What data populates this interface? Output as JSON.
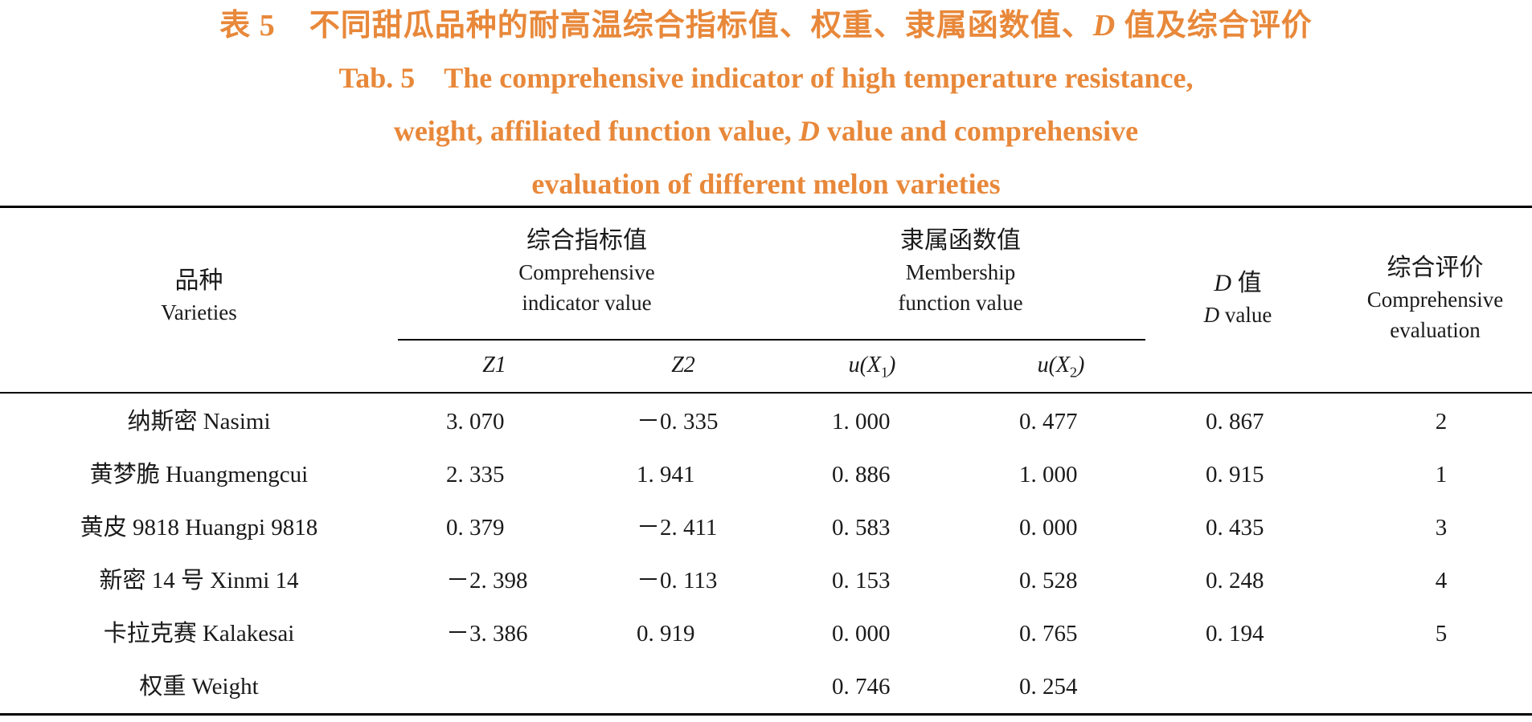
{
  "caption": {
    "cn_prefix": "表 5",
    "cn_a": "不同甜瓜品种的耐高温综合指标值、权重、隶属函数值、",
    "cn_d": "D",
    "cn_b": " 值及综合评价",
    "en_line1": "Tab. 5　The comprehensive indicator of high temperature resistance,",
    "en_line2_a": "weight, affiliated function value, ",
    "en_line2_d": "D",
    "en_line2_b": " value and comprehensive",
    "en_line3": "evaluation of different melon varieties"
  },
  "header": {
    "varieties_cn": "品种",
    "varieties_en": "Varieties",
    "ci_cn": "综合指标值",
    "ci_en1": "Comprehensive",
    "ci_en2": "indicator value",
    "mf_cn": "隶属函数值",
    "mf_en1": "Membership",
    "mf_en2": "function value",
    "d_cn_d": "D",
    "d_cn_rest": " 值",
    "d_en_d": "D",
    "d_en_rest": " value",
    "eval_cn": "综合评价",
    "eval_en1": "Comprehensive",
    "eval_en2": "evaluation",
    "z1": "Z1",
    "z2": "Z2",
    "u1_base": "u(X",
    "u1_sub": "1",
    "u1_end": ")",
    "u2_base": "u(X",
    "u2_sub": "2",
    "u2_end": ")"
  },
  "rows": [
    {
      "variety": "纳斯密 Nasimi",
      "z1": "3. 070",
      "z2": "－0. 335",
      "u1": "1. 000",
      "u2": "0. 477",
      "d": "0. 867",
      "eval": "2"
    },
    {
      "variety": "黄梦脆 Huangmengcui",
      "z1": "2. 335",
      "z2": "1. 941",
      "u1": "0. 886",
      "u2": "1. 000",
      "d": "0. 915",
      "eval": "1"
    },
    {
      "variety": "黄皮 9818 Huangpi 9818",
      "z1": "0. 379",
      "z2": "－2. 411",
      "u1": "0. 583",
      "u2": "0. 000",
      "d": "0. 435",
      "eval": "3"
    },
    {
      "variety": "新密 14 号 Xinmi 14",
      "z1": "－2. 398",
      "z2": "－0. 113",
      "u1": "0. 153",
      "u2": "0. 528",
      "d": "0. 248",
      "eval": "4"
    },
    {
      "variety": "卡拉克赛 Kalakesai",
      "z1": "－3. 386",
      "z2": "0. 919",
      "u1": "0. 000",
      "u2": "0. 765",
      "d": "0. 194",
      "eval": "5"
    },
    {
      "variety": "权重 Weight",
      "z1": "",
      "z2": "",
      "u1": "0. 746",
      "u2": "0. 254",
      "d": "",
      "eval": ""
    }
  ]
}
